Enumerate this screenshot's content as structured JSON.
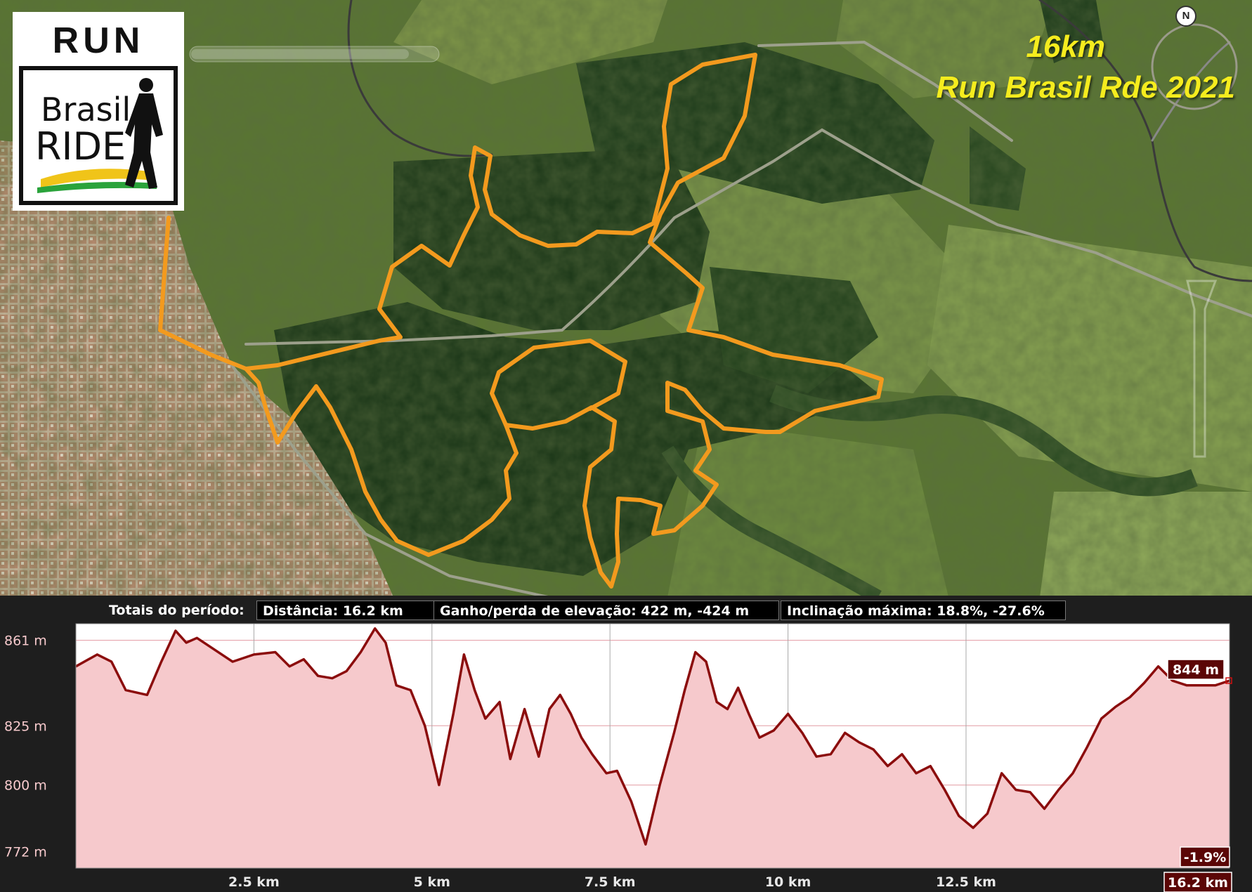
{
  "map_title": {
    "distance": "16km",
    "event": "Run Brasil Rde 2021"
  },
  "logo": {
    "top_word": "RUN",
    "brand_line1": "Brasil",
    "brand_line2": "RIDE"
  },
  "compass": {
    "label": "N"
  },
  "stats_bar": {
    "label": "Totais do período:",
    "distance": "Distância: 16.2 km",
    "elevation": "Ganho/perda de elevação: 422 m, -424 m",
    "grade": "Inclinação máxima: 18.8%, -27.6%"
  },
  "cursor": {
    "elevation_label": "844 m",
    "grade_label": "-1.9%",
    "distance_label": "16.2 km"
  },
  "colors": {
    "route": "#f39a1e",
    "profile_line": "#8b0d0d",
    "profile_fill": "#f6c9cc",
    "title": "#f5ec1e"
  },
  "chart_data": {
    "type": "area",
    "xlim": [
      0,
      16.2
    ],
    "ylim": [
      765,
      868
    ],
    "x_ticks": [
      "2.5 km",
      "5 km",
      "7.5 km",
      "10 km",
      "12.5 km"
    ],
    "x_tick_values": [
      2.5,
      5,
      7.5,
      10,
      12.5
    ],
    "y_ticks": [
      "861 m",
      "825 m",
      "800 m",
      "772 m"
    ],
    "y_tick_values": [
      861,
      825,
      800,
      772
    ],
    "grid": true,
    "x": [
      0,
      0.3,
      0.5,
      0.7,
      1.0,
      1.2,
      1.4,
      1.55,
      1.7,
      1.9,
      2.2,
      2.5,
      2.8,
      3.0,
      3.2,
      3.4,
      3.6,
      3.8,
      4.0,
      4.2,
      4.35,
      4.5,
      4.7,
      4.9,
      5.1,
      5.3,
      5.45,
      5.6,
      5.75,
      5.95,
      6.1,
      6.3,
      6.5,
      6.65,
      6.8,
      6.95,
      7.1,
      7.25,
      7.45,
      7.6,
      7.8,
      8.0,
      8.2,
      8.4,
      8.55,
      8.7,
      8.85,
      9.0,
      9.15,
      9.3,
      9.45,
      9.6,
      9.8,
      10.0,
      10.2,
      10.4,
      10.6,
      10.8,
      11.0,
      11.2,
      11.4,
      11.6,
      11.8,
      12.0,
      12.2,
      12.4,
      12.6,
      12.8,
      13.0,
      13.2,
      13.4,
      13.6,
      13.8,
      14.0,
      14.2,
      14.4,
      14.6,
      14.8,
      15.0,
      15.2,
      15.4,
      15.6,
      15.8,
      16.0,
      16.2
    ],
    "y": [
      850,
      855,
      852,
      840,
      838,
      852,
      865,
      860,
      862,
      858,
      852,
      855,
      856,
      850,
      853,
      846,
      845,
      848,
      856,
      866,
      860,
      842,
      840,
      825,
      800,
      830,
      855,
      840,
      828,
      835,
      811,
      832,
      812,
      832,
      838,
      830,
      820,
      813,
      805,
      806,
      793,
      775,
      800,
      822,
      840,
      856,
      852,
      835,
      832,
      841,
      830,
      820,
      823,
      830,
      822,
      812,
      813,
      822,
      818,
      815,
      808,
      813,
      805,
      808,
      798,
      787,
      782,
      788,
      805,
      798,
      797,
      790,
      798,
      805,
      816,
      828,
      833,
      837,
      843,
      850,
      844,
      842,
      842,
      842,
      844
    ]
  }
}
